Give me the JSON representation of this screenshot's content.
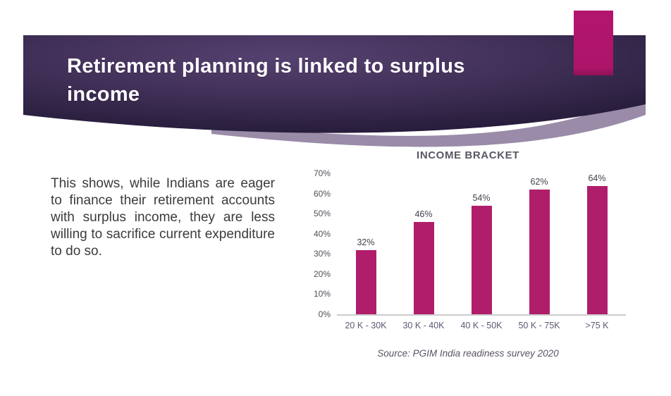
{
  "slide": {
    "title_lines": [
      "Retirement planning is linked to surplus",
      "income"
    ],
    "body_text": "This shows, while Indians are eager to finance their retirement accounts with surplus income, they are less willing to sacrifice current expenditure to do so."
  },
  "colors": {
    "banner_dark": "#261c3a",
    "banner_light": "#55416f",
    "accent_wedge": "#9a8ba9",
    "magenta_accent": "#b2156e",
    "bar": "#b01e6b",
    "axis_line": "#cccccc",
    "chart_title_text": "#585864",
    "tick_text": "#4e4e59",
    "category_text": "#5f5773",
    "source_text": "#5a5264",
    "body_text": "#3b3b3b",
    "title_text": "#fdfcff"
  },
  "chart_data": {
    "type": "bar",
    "title": "INCOME BRACKET",
    "categories": [
      "20 K - 30K",
      "30 K - 40K",
      "40 K - 50K",
      "50 K - 75K",
      ">75 K"
    ],
    "values": [
      32,
      46,
      54,
      62,
      64
    ],
    "value_labels": [
      "32%",
      "46%",
      "54%",
      "62%",
      "64%"
    ],
    "yticks": [
      "70%",
      "60%",
      "50%",
      "40%",
      "30%",
      "20%",
      "10%",
      "0%"
    ],
    "ylim": [
      0,
      70
    ],
    "xlabel": "",
    "ylabel": "",
    "grid": false,
    "legend": false,
    "bar_color": "#b01e6b",
    "source": "Source: PGIM India readiness survey 2020"
  }
}
